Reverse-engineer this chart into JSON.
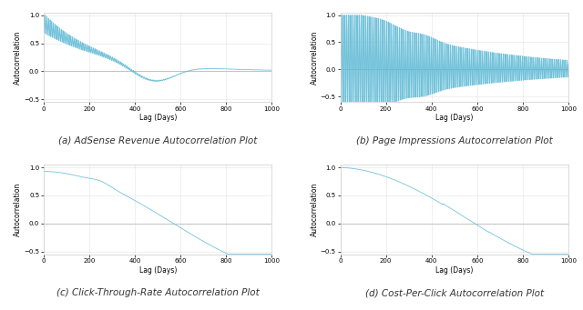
{
  "title_a": "(a) AdSense Revenue Autocorrelation Plot",
  "title_b": "(b) Page Impressions Autocorrelation Plot",
  "title_c": "(c) Click-Through-Rate Autocorrelation Plot",
  "title_d": "(d) Cost-Per-Click Autocorrelation Plot",
  "xlabel": "Lag (Days)",
  "ylabel": "Autocorrelation",
  "line_color": "#5bb8d4",
  "zero_line_color": "#bbbbbb",
  "grid_color": "#dddddd",
  "background_color": "#ffffff",
  "xlim": [
    0,
    1000
  ],
  "n_lags": 1000,
  "caption_fontsize": 7.5,
  "label_fontsize": 5.5,
  "tick_fontsize": 5.0,
  "linewidth": 0.6
}
